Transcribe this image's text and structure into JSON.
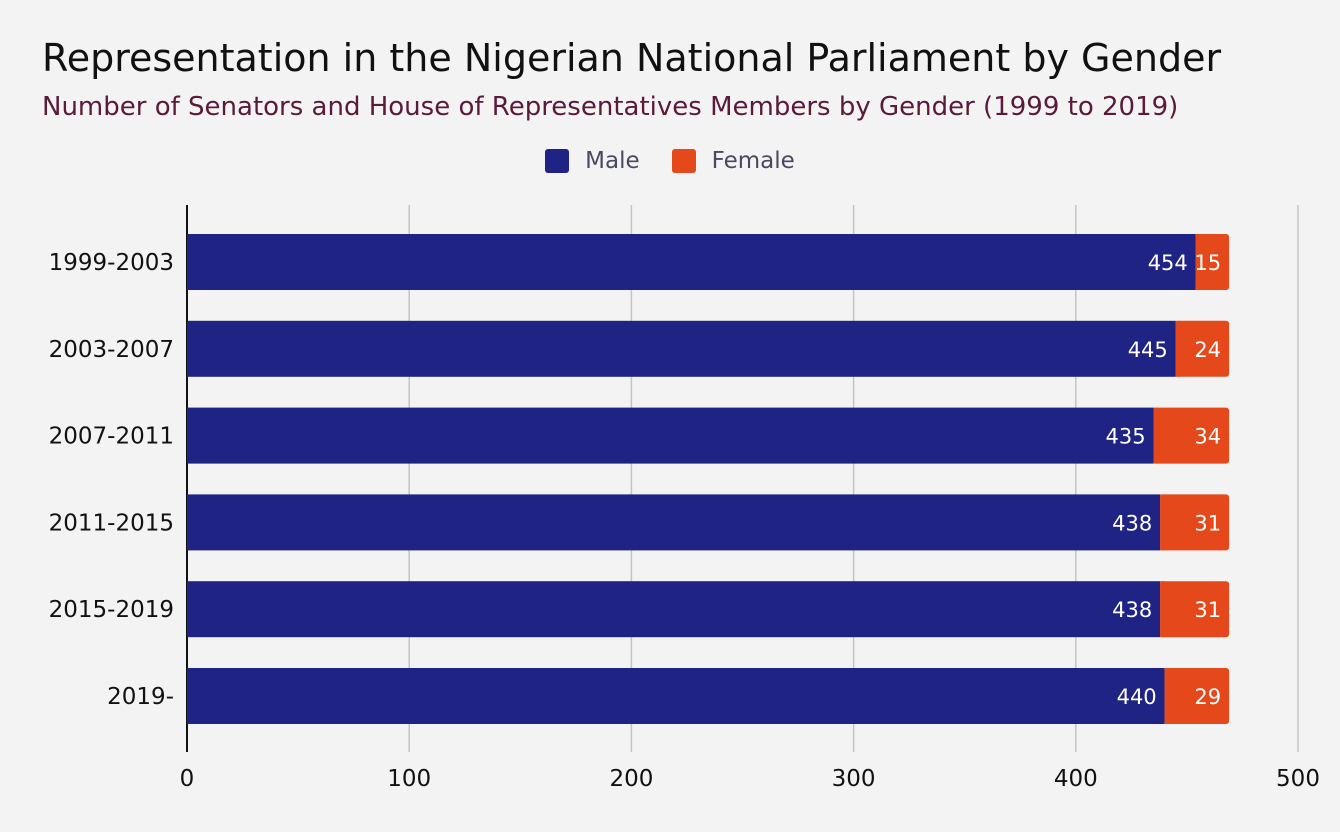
{
  "chart_data": {
    "type": "bar",
    "orientation": "horizontal",
    "stacked": true,
    "title": "Representation in the Nigerian National Parliament by Gender",
    "subtitle": "Number of Senators and House of Representatives Members by Gender (1999 to 2019)",
    "categories": [
      "1999-2003",
      "2003-2007",
      "2007-2011",
      "2011-2015",
      "2015-2019",
      "2019-"
    ],
    "series": [
      {
        "name": "Male",
        "color": "#1f2383",
        "values": [
          454,
          445,
          435,
          438,
          438,
          440
        ]
      },
      {
        "name": "Female",
        "color": "#e5481b",
        "values": [
          15,
          24,
          34,
          31,
          31,
          29
        ]
      }
    ],
    "xlim": [
      0,
      500
    ],
    "xticks": [
      0,
      100,
      200,
      300,
      400,
      500
    ],
    "grid": true,
    "legend_position": "top-center",
    "xlabel": "",
    "ylabel": ""
  }
}
